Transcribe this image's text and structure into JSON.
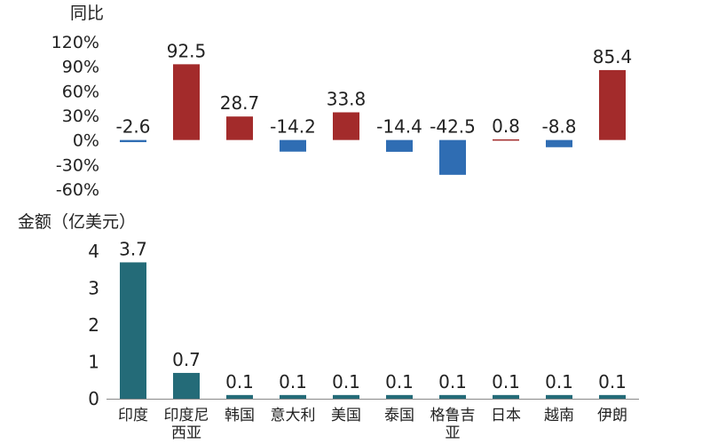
{
  "chart_data": [
    {
      "type": "bar",
      "ylabel": "同比",
      "categories": [
        "印度",
        "印度尼西亚",
        "韩国",
        "意大利",
        "美国",
        "泰国",
        "格鲁吉亚",
        "日本",
        "越南",
        "伊朗"
      ],
      "values": [
        -2.6,
        92.5,
        28.7,
        -14.2,
        33.8,
        -14.4,
        -42.5,
        0.8,
        -8.8,
        85.4
      ],
      "data_labels": [
        "-2.6",
        "92.5",
        "28.7",
        "-14.2",
        "33.8",
        "-14.4",
        "-42.5",
        "0.8",
        "-8.8",
        "85.4"
      ],
      "y_ticks": [
        120,
        90,
        60,
        30,
        0,
        -30,
        -60
      ],
      "y_tick_labels": [
        "120%",
        "90%",
        "60%",
        "30%",
        "0%",
        "-30%",
        "-60%"
      ],
      "ylim": [
        -60,
        120
      ],
      "positive_color": "#a32b2b",
      "negative_color": "#2f6db3"
    },
    {
      "type": "bar",
      "ylabel": "金额（亿美元）",
      "categories": [
        "印度",
        "印度尼西亚",
        "韩国",
        "意大利",
        "美国",
        "泰国",
        "格鲁吉亚",
        "日本",
        "越南",
        "伊朗"
      ],
      "category_label_lines": [
        [
          "印度"
        ],
        [
          "印度尼",
          "西亚"
        ],
        [
          "韩国"
        ],
        [
          "意大利"
        ],
        [
          "美国"
        ],
        [
          "泰国"
        ],
        [
          "格鲁吉",
          "亚"
        ],
        [
          "日本"
        ],
        [
          "越南"
        ],
        [
          "伊朗"
        ]
      ],
      "values": [
        3.7,
        0.7,
        0.1,
        0.1,
        0.1,
        0.1,
        0.1,
        0.1,
        0.1,
        0.1
      ],
      "data_labels": [
        "3.7",
        "0.7",
        "0.1",
        "0.1",
        "0.1",
        "0.1",
        "0.1",
        "0.1",
        "0.1",
        "0.1"
      ],
      "y_ticks": [
        4,
        3,
        2,
        1,
        0
      ],
      "y_tick_labels": [
        "4",
        "3",
        "2",
        "1",
        "0"
      ],
      "ylim": [
        0,
        4
      ],
      "bar_color": "#246b78"
    }
  ]
}
